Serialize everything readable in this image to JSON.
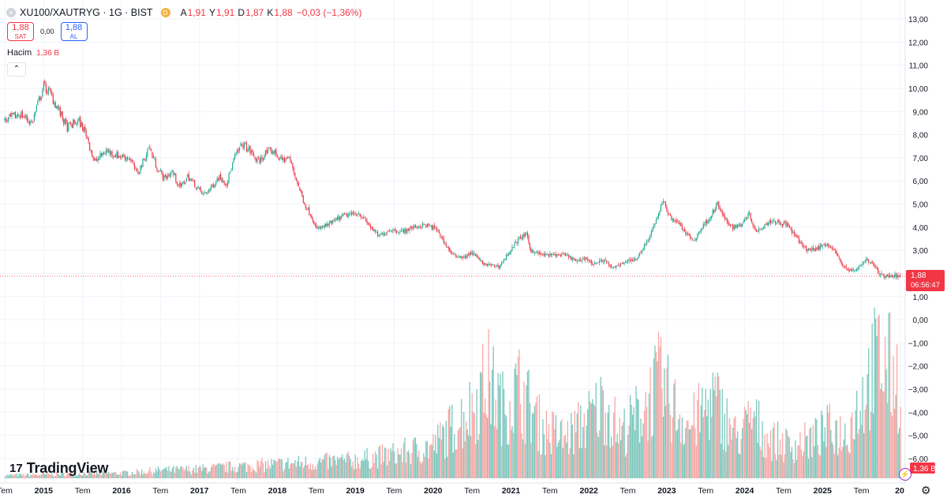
{
  "header": {
    "symbol": "XU100/XAUTRYG · 1G · BIST",
    "badge": "D",
    "open_label": "A",
    "open": "1,91",
    "high_label": "Y",
    "high": "1,91",
    "low_label": "D",
    "low": "1,87",
    "close_label": "K",
    "close": "1,88",
    "change": "−0,03 (−1,36%)"
  },
  "trade": {
    "sell_price": "1,88",
    "sell_label": "SAT",
    "spread": "0,00",
    "buy_price": "1,88",
    "buy_label": "AL"
  },
  "volume": {
    "label": "Hacim",
    "value": "1,36 B"
  },
  "logo": {
    "mark": "17",
    "text": "TradingView"
  },
  "icons": [
    "symbol-icon",
    "collapse-chevron-icon",
    "settings-gear-icon",
    "bolt-icon"
  ],
  "colors": {
    "up": "#22ab94",
    "down": "#f23645",
    "vol_up": "#7cc7bd",
    "vol_down": "#f7a9a7",
    "grid": "#f0f3fa",
    "accent": "#2962ff"
  },
  "chart_data": {
    "type": "candlestick",
    "title": "XU100/XAUTRYG · 1G · BIST",
    "ylim": [
      -6.4,
      13.3
    ],
    "y_ticks": [
      "13,00",
      "12,00",
      "11,00",
      "10,00",
      "9,00",
      "8,00",
      "7,00",
      "6,00",
      "5,00",
      "4,00",
      "3,00",
      "2,00",
      "1,00",
      "0,00",
      "−1,00",
      "−2,00",
      "−3,00",
      "−4,00",
      "−5,00",
      "−6,00"
    ],
    "y_tick_values": [
      13,
      12,
      11,
      10,
      9,
      8,
      7,
      6,
      5,
      4,
      3,
      2,
      1,
      0,
      -1,
      -2,
      -3,
      -4,
      -5,
      -6
    ],
    "x_ticks": [
      {
        "label": "Tem",
        "t": 2014.5
      },
      {
        "label": "2015",
        "t": 2015.0
      },
      {
        "label": "Tem",
        "t": 2015.5
      },
      {
        "label": "2016",
        "t": 2016.0
      },
      {
        "label": "Tem",
        "t": 2016.5
      },
      {
        "label": "2017",
        "t": 2017.0
      },
      {
        "label": "Tem",
        "t": 2017.5
      },
      {
        "label": "2018",
        "t": 2018.0
      },
      {
        "label": "Tem",
        "t": 2018.5
      },
      {
        "label": "2019",
        "t": 2019.0
      },
      {
        "label": "Tem",
        "t": 2019.5
      },
      {
        "label": "2020",
        "t": 2020.0
      },
      {
        "label": "Tem",
        "t": 2020.5
      },
      {
        "label": "2021",
        "t": 2021.0
      },
      {
        "label": "Tem",
        "t": 2021.5
      },
      {
        "label": "2022",
        "t": 2022.0
      },
      {
        "label": "Tem",
        "t": 2022.5
      },
      {
        "label": "2023",
        "t": 2023.0
      },
      {
        "label": "Tem",
        "t": 2023.5
      },
      {
        "label": "2024",
        "t": 2024.0
      },
      {
        "label": "Tem",
        "t": 2024.5
      },
      {
        "label": "2025",
        "t": 2025.0
      },
      {
        "label": "Tem",
        "t": 2025.5
      },
      {
        "label": "20",
        "t": 2026.0
      }
    ],
    "x_range": [
      2014.5,
      2026.0
    ],
    "price_path": [
      [
        2014.5,
        8.6
      ],
      [
        2014.7,
        8.9
      ],
      [
        2014.85,
        8.5
      ],
      [
        2014.95,
        9.6
      ],
      [
        2015.0,
        10.1
      ],
      [
        2015.08,
        9.8
      ],
      [
        2015.2,
        9.0
      ],
      [
        2015.3,
        8.3
      ],
      [
        2015.45,
        8.6
      ],
      [
        2015.55,
        8.0
      ],
      [
        2015.65,
        6.8
      ],
      [
        2015.8,
        7.3
      ],
      [
        2015.95,
        7.1
      ],
      [
        2016.1,
        7.0
      ],
      [
        2016.2,
        6.3
      ],
      [
        2016.3,
        7.0
      ],
      [
        2016.35,
        7.5
      ],
      [
        2016.45,
        6.6
      ],
      [
        2016.55,
        6.1
      ],
      [
        2016.65,
        6.4
      ],
      [
        2016.75,
        5.7
      ],
      [
        2016.85,
        6.2
      ],
      [
        2016.95,
        5.8
      ],
      [
        2017.05,
        5.4
      ],
      [
        2017.15,
        5.7
      ],
      [
        2017.25,
        6.2
      ],
      [
        2017.35,
        5.9
      ],
      [
        2017.45,
        7.0
      ],
      [
        2017.55,
        7.6
      ],
      [
        2017.65,
        7.3
      ],
      [
        2017.75,
        6.8
      ],
      [
        2017.85,
        7.2
      ],
      [
        2017.95,
        7.3
      ],
      [
        2018.05,
        6.9
      ],
      [
        2018.15,
        7.0
      ],
      [
        2018.25,
        6.0
      ],
      [
        2018.35,
        5.0
      ],
      [
        2018.45,
        4.4
      ],
      [
        2018.5,
        3.9
      ],
      [
        2018.65,
        4.1
      ],
      [
        2018.85,
        4.5
      ],
      [
        2019.05,
        4.6
      ],
      [
        2019.15,
        4.2
      ],
      [
        2019.3,
        3.6
      ],
      [
        2019.45,
        3.9
      ],
      [
        2019.6,
        3.8
      ],
      [
        2019.75,
        4.0
      ],
      [
        2019.9,
        4.1
      ],
      [
        2020.05,
        3.9
      ],
      [
        2020.15,
        3.3
      ],
      [
        2020.25,
        2.8
      ],
      [
        2020.4,
        2.7
      ],
      [
        2020.5,
        2.9
      ],
      [
        2020.65,
        2.4
      ],
      [
        2020.85,
        2.3
      ],
      [
        2020.95,
        2.8
      ],
      [
        2021.1,
        3.5
      ],
      [
        2021.2,
        3.7
      ],
      [
        2021.25,
        3.0
      ],
      [
        2021.4,
        2.8
      ],
      [
        2021.55,
        2.8
      ],
      [
        2021.7,
        2.8
      ],
      [
        2021.85,
        2.5
      ],
      [
        2021.95,
        2.7
      ],
      [
        2022.05,
        2.4
      ],
      [
        2022.2,
        2.6
      ],
      [
        2022.3,
        2.2
      ],
      [
        2022.45,
        2.5
      ],
      [
        2022.6,
        2.6
      ],
      [
        2022.75,
        3.4
      ],
      [
        2022.85,
        4.2
      ],
      [
        2022.95,
        5.1
      ],
      [
        2023.05,
        4.4
      ],
      [
        2023.15,
        4.2
      ],
      [
        2023.25,
        3.7
      ],
      [
        2023.35,
        3.4
      ],
      [
        2023.45,
        4.0
      ],
      [
        2023.55,
        4.4
      ],
      [
        2023.65,
        5.0
      ],
      [
        2023.75,
        4.3
      ],
      [
        2023.85,
        4.0
      ],
      [
        2023.95,
        4.1
      ],
      [
        2024.05,
        4.6
      ],
      [
        2024.15,
        3.8
      ],
      [
        2024.25,
        4.1
      ],
      [
        2024.35,
        4.3
      ],
      [
        2024.45,
        4.2
      ],
      [
        2024.55,
        4.1
      ],
      [
        2024.65,
        3.6
      ],
      [
        2024.8,
        3.0
      ],
      [
        2024.95,
        3.1
      ],
      [
        2025.05,
        3.3
      ],
      [
        2025.15,
        3.0
      ],
      [
        2025.25,
        2.4
      ],
      [
        2025.35,
        2.1
      ],
      [
        2025.45,
        2.2
      ],
      [
        2025.55,
        2.6
      ],
      [
        2025.65,
        2.4
      ],
      [
        2025.75,
        1.9
      ],
      [
        2025.85,
        1.9
      ],
      [
        2026.0,
        1.88
      ]
    ],
    "volume_path": [
      [
        2014.5,
        0.15
      ],
      [
        2015.0,
        0.18
      ],
      [
        2015.5,
        0.25
      ],
      [
        2016.0,
        0.25
      ],
      [
        2016.5,
        0.4
      ],
      [
        2017.0,
        0.45
      ],
      [
        2017.5,
        0.6
      ],
      [
        2018.0,
        0.7
      ],
      [
        2018.5,
        0.8
      ],
      [
        2019.0,
        0.9
      ],
      [
        2019.5,
        1.2
      ],
      [
        2020.0,
        1.6
      ],
      [
        2020.5,
        3.5
      ],
      [
        2020.7,
        5.0
      ],
      [
        2020.9,
        3.5
      ],
      [
        2021.1,
        4.5
      ],
      [
        2021.4,
        2.5
      ],
      [
        2021.7,
        2.0
      ],
      [
        2022.0,
        3.0
      ],
      [
        2022.2,
        3.8
      ],
      [
        2022.4,
        2.2
      ],
      [
        2022.7,
        3.5
      ],
      [
        2022.9,
        4.8
      ],
      [
        2023.1,
        3.5
      ],
      [
        2023.3,
        2.6
      ],
      [
        2023.6,
        4.0
      ],
      [
        2023.9,
        2.0
      ],
      [
        2024.1,
        3.0
      ],
      [
        2024.3,
        2.0
      ],
      [
        2024.6,
        1.6
      ],
      [
        2024.9,
        2.0
      ],
      [
        2025.1,
        2.5
      ],
      [
        2025.3,
        2.2
      ],
      [
        2025.5,
        4.0
      ],
      [
        2025.7,
        6.0
      ],
      [
        2025.85,
        5.5
      ],
      [
        2026.0,
        4.8
      ]
    ],
    "last_price": "1,88",
    "countdown": "06:56:47",
    "last_volume": "1,36 B"
  }
}
